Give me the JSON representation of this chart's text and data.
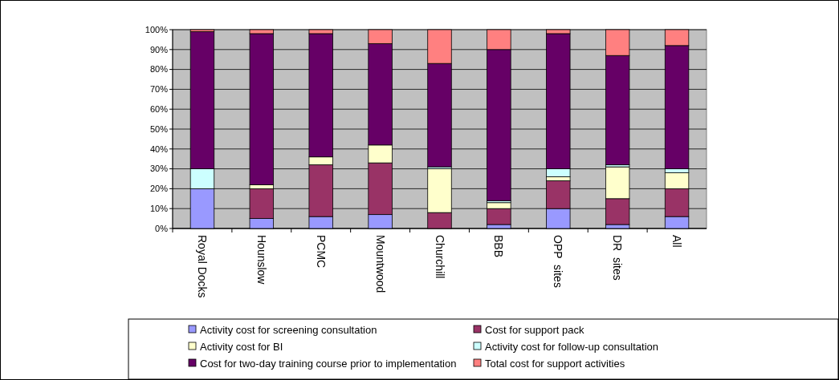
{
  "chart_data": {
    "type": "bar",
    "stacked": true,
    "categories": [
      "Royal Docks",
      "Hounslow",
      "PCMC",
      "Mountwood",
      "Churchill",
      "BBB",
      "OPP  sites",
      "DR  sites",
      "All"
    ],
    "series": [
      {
        "name": "Activity cost for screening consultation",
        "color": "#9999ff",
        "values": [
          20,
          5,
          6,
          7,
          0,
          2,
          10,
          2,
          6
        ]
      },
      {
        "name": "Cost for support pack",
        "color": "#993366",
        "values": [
          0,
          15,
          26,
          26,
          8,
          8,
          14,
          13,
          14
        ]
      },
      {
        "name": "Activity cost for BI",
        "color": "#ffffcc",
        "values": [
          0,
          2,
          4,
          9,
          22,
          3,
          2,
          16,
          8
        ]
      },
      {
        "name": "Activity cost for follow-up consultation",
        "color": "#ccffff",
        "values": [
          10,
          0,
          0,
          0,
          1,
          1,
          4,
          1,
          2
        ]
      },
      {
        "name": "Cost for two-day training course prior to implementation",
        "color": "#660066",
        "values": [
          69,
          76,
          62,
          51,
          52,
          76,
          68,
          55,
          62
        ]
      },
      {
        "name": "Total cost for support activities",
        "color": "#ff8080",
        "values": [
          1,
          2,
          2,
          7,
          17,
          10,
          2,
          13,
          8
        ]
      }
    ],
    "ylim": [
      0,
      100
    ],
    "yticks": [
      {
        "value": 0,
        "label": "0%"
      },
      {
        "value": 10,
        "label": "10%"
      },
      {
        "value": 20,
        "label": "20%"
      },
      {
        "value": 30,
        "label": "30%"
      },
      {
        "value": 40,
        "label": "40%"
      },
      {
        "value": 50,
        "label": "50%"
      },
      {
        "value": 60,
        "label": "60%"
      },
      {
        "value": 70,
        "label": "70%"
      },
      {
        "value": 80,
        "label": "80%"
      },
      {
        "value": 90,
        "label": "90%"
      },
      {
        "value": 100,
        "label": "100%"
      }
    ],
    "grid": "y",
    "legend": "bottom"
  }
}
